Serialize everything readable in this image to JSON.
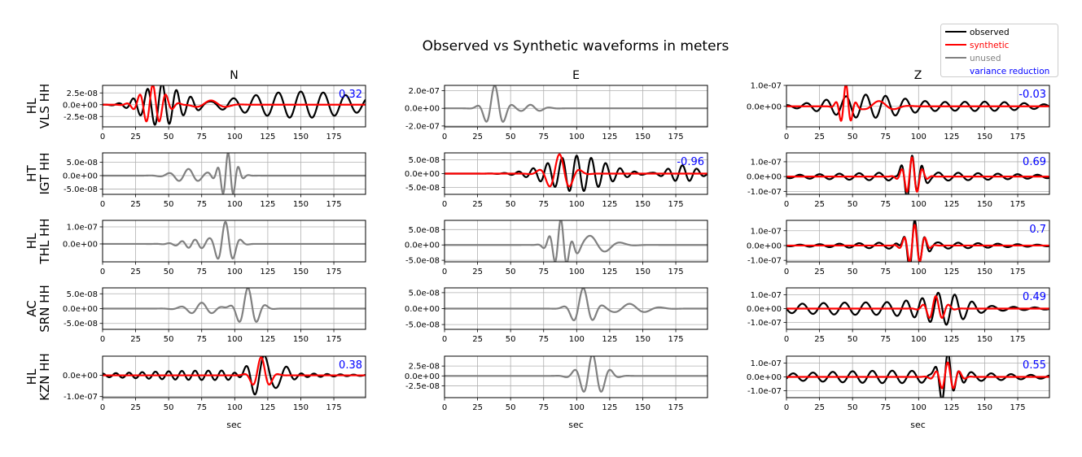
{
  "chart_data": {
    "type": "line",
    "title": "Observed vs Synthetic waveforms in meters",
    "xlabel": "sec",
    "xlim": [
      0,
      199
    ],
    "xticks": [
      0,
      25,
      50,
      75,
      100,
      125,
      150,
      175
    ],
    "grid": true,
    "columns": [
      "N",
      "E",
      "Z"
    ],
    "rows": [
      {
        "label_top": "HL",
        "label_bottom": "VLS HH"
      },
      {
        "label_top": "HT",
        "label_bottom": "IGT HH"
      },
      {
        "label_top": "HL",
        "label_bottom": "THL HH"
      },
      {
        "label_top": "AC",
        "label_bottom": "SRN HH"
      },
      {
        "label_top": "HL",
        "label_bottom": "KZN HH"
      }
    ],
    "legend": {
      "placement": "top-right",
      "entries": [
        {
          "label": "observed",
          "color": "#000000"
        },
        {
          "label": "synthetic",
          "color": "#ff0000"
        },
        {
          "label": "unused",
          "color": "#808080"
        },
        {
          "label": "variance reduction",
          "color": "#0000ff"
        }
      ]
    },
    "wave_model": "sum of packets [t0_sec, amplitude_m, period_sec, width_sec]",
    "panels": [
      [
        {
          "ylim": [
            -4.7e-08,
            4.1e-08
          ],
          "yticks": [
            [
              2.5e-08,
              "2.5e-08"
            ],
            [
              0,
              "0.0e+00"
            ],
            [
              -2.5e-08,
              "-2.5e-08"
            ]
          ],
          "vr": "0.32",
          "traces": [
            {
              "kind": "observed",
              "packets": [
                [
                  45,
                  4.5e-08,
                  11,
                  20
                ],
                [
                  150,
                  2.8e-08,
                  17,
                  60
                ]
              ]
            },
            {
              "kind": "synthetic",
              "packets": [
                [
                  38,
                  4.2e-08,
                  10,
                  12
                ],
                [
                  82,
                  9e-09,
                  25,
                  14
                ]
              ]
            }
          ]
        },
        {
          "ylim": [
            -2.1e-07,
            2.6e-07
          ],
          "yticks": [
            [
              2e-07,
              "2.0e-07"
            ],
            [
              0,
              "0.0e+00"
            ],
            [
              -2e-07,
              "-2.0e-07"
            ]
          ],
          "vr": null,
          "traces": [
            {
              "kind": "unused",
              "packets": [
                [
                  38,
                  2.6e-07,
                  14,
                  9
                ],
                [
                  65,
                  4e-08,
                  15,
                  12
                ]
              ]
            }
          ]
        },
        {
          "ylim": [
            -9.8e-08,
            1e-07
          ],
          "yticks": [
            [
              1e-07,
              "1.0e-07"
            ],
            [
              0,
              "0.0e+00"
            ]
          ],
          "vr": "-0.03",
          "traces": [
            {
              "kind": "observed",
              "packets": [
                [
                  60,
                  5.5e-08,
                  15,
                  40
                ],
                [
                  150,
                  2.2e-08,
                  15,
                  50
                ]
              ]
            },
            {
              "kind": "synthetic",
              "packets": [
                [
                  45,
                  1.05e-07,
                  8,
                  6
                ],
                [
                  70,
                  2.5e-08,
                  25,
                  15
                ]
              ]
            }
          ]
        }
      ],
      [
        {
          "ylim": [
            -7e-08,
            8.5e-08
          ],
          "yticks": [
            [
              5e-08,
              "5.0e-08"
            ],
            [
              0,
              "0.0e+00"
            ],
            [
              -5e-08,
              "-5.0e-08"
            ]
          ],
          "vr": null,
          "traces": [
            {
              "kind": "unused",
              "packets": [
                [
                  95,
                  8.5e-08,
                  8,
                  8
                ],
                [
                  65,
                  2.5e-08,
                  15,
                  15
                ]
              ]
            }
          ]
        },
        {
          "ylim": [
            -7.5e-08,
            7.5e-08
          ],
          "yticks": [
            [
              5e-08,
              "5.0e-08"
            ],
            [
              0,
              "0.0e+00"
            ],
            [
              -5e-08,
              "-5.0e-08"
            ]
          ],
          "vr": "-0.96",
          "traces": [
            {
              "kind": "observed",
              "packets": [
                [
                  100,
                  6.5e-08,
                  11,
                  30
                ],
                [
                  180,
                  3e-08,
                  11,
                  15
                ]
              ]
            },
            {
              "kind": "synthetic",
              "packets": [
                [
                  87,
                  7e-08,
                  16,
                  12
                ]
              ]
            }
          ]
        },
        {
          "ylim": [
            -1.2e-07,
            1.6e-07
          ],
          "yticks": [
            [
              1e-07,
              "1.0e-07"
            ],
            [
              0,
              "0.0e+00"
            ],
            [
              -1e-07,
              "-1.0e-07"
            ]
          ],
          "vr": "0.69",
          "traces": [
            {
              "kind": "observed",
              "packets": [
                [
                  95,
                  1.55e-07,
                  8,
                  8
                ],
                [
                  100,
                  2.8e-08,
                  15,
                  100
                ]
              ]
            },
            {
              "kind": "synthetic",
              "packets": [
                [
                  95,
                  1.3e-07,
                  8,
                  8
                ]
              ]
            }
          ]
        }
      ],
      [
        {
          "ylim": [
            -1.05e-07,
            1.38e-07
          ],
          "yticks": [
            [
              1e-07,
              "1.0e-07"
            ],
            [
              0,
              "0.0e+00"
            ]
          ],
          "vr": null,
          "traces": [
            {
              "kind": "unused",
              "packets": [
                [
                  93,
                  1.3e-07,
                  12,
                  9
                ],
                [
                  70,
                  2.5e-08,
                  10,
                  15
                ]
              ]
            }
          ]
        },
        {
          "ylim": [
            -5.5e-08,
            8e-08
          ],
          "yticks": [
            [
              5e-08,
              "5.0e-08"
            ],
            [
              0,
              "0.0e+00"
            ],
            [
              -5e-08,
              "-5.0e-08"
            ]
          ],
          "vr": null,
          "traces": [
            {
              "kind": "unused",
              "packets": [
                [
                  88,
                  7.5e-08,
                  9,
                  9
                ],
                [
                  110,
                  3e-08,
                  24,
                  20
                ]
              ]
            }
          ]
        },
        {
          "ylim": [
            -1.1e-07,
            1.7e-07
          ],
          "yticks": [
            [
              1e-07,
              "1.0e-07"
            ],
            [
              0,
              "0.0e+00"
            ],
            [
              -1e-07,
              "-1.0e-07"
            ]
          ],
          "vr": "0.7",
          "traces": [
            {
              "kind": "observed",
              "packets": [
                [
                  97,
                  1.65e-07,
                  8,
                  8
                ],
                [
                  100,
                  2.2e-08,
                  15,
                  80
                ]
              ]
            },
            {
              "kind": "synthetic",
              "packets": [
                [
                  97,
                  1.4e-07,
                  8,
                  8
                ]
              ]
            }
          ]
        }
      ],
      [
        {
          "ylim": [
            -7e-08,
            7e-08
          ],
          "yticks": [
            [
              5e-08,
              "5.0e-08"
            ],
            [
              0,
              "0.0e+00"
            ],
            [
              -5e-08,
              "-5.0e-08"
            ]
          ],
          "vr": null,
          "traces": [
            {
              "kind": "unused",
              "packets": [
                [
                  110,
                  7e-08,
                  14,
                  10
                ],
                [
                  75,
                  2e-08,
                  16,
                  15
                ]
              ]
            }
          ]
        },
        {
          "ylim": [
            -6.5e-08,
            6.5e-08
          ],
          "yticks": [
            [
              5e-08,
              "5.0e-08"
            ],
            [
              0,
              "0.0e+00"
            ],
            [
              -5e-08,
              "-5.0e-08"
            ]
          ],
          "vr": null,
          "traces": [
            {
              "kind": "unused",
              "packets": [
                [
                  105,
                  6.5e-08,
                  16,
                  10
                ],
                [
                  140,
                  1.5e-08,
                  24,
                  20
                ]
              ]
            }
          ]
        },
        {
          "ylim": [
            -1.5e-07,
            1.5e-07
          ],
          "yticks": [
            [
              1e-07,
              "1.0e-07"
            ],
            [
              0,
              "0.0e+00"
            ],
            [
              -1e-07,
              "-1.0e-07"
            ]
          ],
          "vr": "0.49",
          "traces": [
            {
              "kind": "observed",
              "packets": [
                [
                  115,
                  1.45e-07,
                  13,
                  20
                ],
                [
                  60,
                  4.5e-08,
                  16,
                  100
                ]
              ]
            },
            {
              "kind": "synthetic",
              "packets": [
                [
                  113,
                  9e-08,
                  10,
                  9
                ]
              ]
            }
          ]
        }
      ],
      [
        {
          "ylim": [
            -1.05e-07,
            9e-08
          ],
          "yticks": [
            [
              0,
              "0.0e+00"
            ],
            [
              -1e-07,
              "-1.0e-07"
            ]
          ],
          "vr": "0.38",
          "traces": [
            {
              "kind": "observed",
              "packets": [
                [
                  123,
                  9.5e-08,
                  16,
                  15
                ],
                [
                  80,
                  2.2e-08,
                  10,
                  80
                ]
              ]
            },
            {
              "kind": "synthetic",
              "packets": [
                [
                  120,
                  8.5e-08,
                  14,
                  8
                ]
              ]
            }
          ]
        },
        {
          "ylim": [
            -5.5e-08,
            5e-08
          ],
          "yticks": [
            [
              2.5e-08,
              "2.5e-08"
            ],
            [
              0,
              "0.0e+00"
            ],
            [
              -2.5e-08,
              "-2.5e-08"
            ]
          ],
          "vr": null,
          "traces": [
            {
              "kind": "unused",
              "packets": [
                [
                  112,
                  5.5e-08,
                  14,
                  12
                ]
              ]
            }
          ]
        },
        {
          "ylim": [
            -1.5e-07,
            1.5e-07
          ],
          "yticks": [
            [
              1e-07,
              "1.0e-07"
            ],
            [
              0,
              "0.0e+00"
            ],
            [
              -1e-07,
              "-1.0e-07"
            ]
          ],
          "vr": "0.55",
          "traces": [
            {
              "kind": "observed",
              "packets": [
                [
                  122,
                  1.65e-07,
                  9,
                  9
                ],
                [
                  80,
                  4.5e-08,
                  15,
                  100
                ]
              ]
            },
            {
              "kind": "synthetic",
              "packets": [
                [
                  122,
                  1.05e-07,
                  9,
                  9
                ]
              ]
            }
          ]
        }
      ]
    ]
  }
}
